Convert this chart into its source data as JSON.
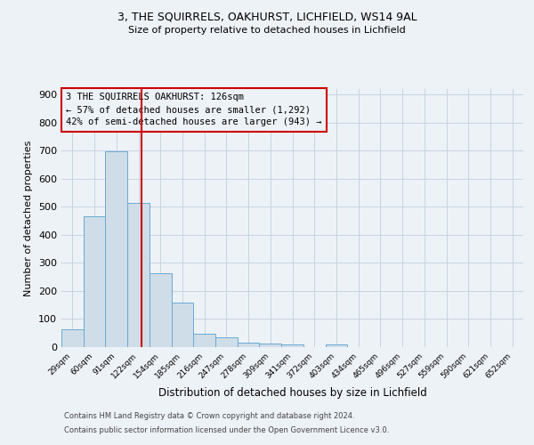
{
  "title_line1": "3, THE SQUIRRELS, OAKHURST, LICHFIELD, WS14 9AL",
  "title_line2": "Size of property relative to detached houses in Lichfield",
  "xlabel": "Distribution of detached houses by size in Lichfield",
  "ylabel": "Number of detached properties",
  "categories": [
    "29sqm",
    "60sqm",
    "91sqm",
    "122sqm",
    "154sqm",
    "185sqm",
    "216sqm",
    "247sqm",
    "278sqm",
    "309sqm",
    "341sqm",
    "372sqm",
    "403sqm",
    "434sqm",
    "465sqm",
    "496sqm",
    "527sqm",
    "559sqm",
    "590sqm",
    "621sqm",
    "652sqm"
  ],
  "values": [
    62,
    467,
    697,
    514,
    262,
    160,
    48,
    35,
    17,
    13,
    8,
    0,
    8,
    0,
    0,
    0,
    0,
    0,
    0,
    0,
    0
  ],
  "bar_color": "#cfdde8",
  "bar_edge_color": "#6aaad4",
  "grid_color": "#c8d4e0",
  "vline_color": "#cc0000",
  "annotation_text": "3 THE SQUIRRELS OAKHURST: 126sqm\n← 57% of detached houses are smaller (1,292)\n42% of semi-detached houses are larger (943) →",
  "annotation_box_edgecolor": "#cc0000",
  "ylim": [
    0,
    920
  ],
  "yticks": [
    0,
    100,
    200,
    300,
    400,
    500,
    600,
    700,
    800,
    900
  ],
  "footer_line1": "Contains HM Land Registry data © Crown copyright and database right 2024.",
  "footer_line2": "Contains public sector information licensed under the Open Government Licence v3.0.",
  "bg_color": "#edf2f7"
}
